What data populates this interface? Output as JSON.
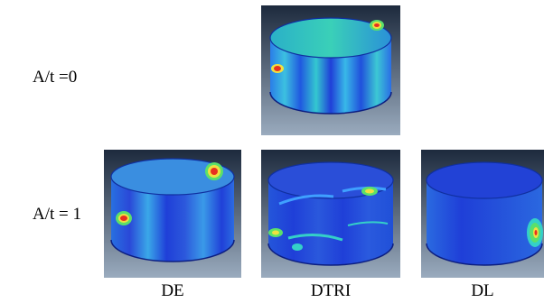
{
  "row_labels": {
    "top": "A/t =0",
    "bottom": "A/t = 1"
  },
  "column_labels": {
    "de": "DE",
    "dtri": "DTRI",
    "dl": "DL"
  },
  "colors": {
    "background_dark": "#1d2a3d",
    "background_light": "#8fa0b4",
    "shell_blue": "#1f3fd8",
    "shell_light_blue": "#3fa0ff",
    "shell_cyan": "#34d0c8",
    "hotspot_green": "#5be06a",
    "hotspot_yellow": "#f0e040",
    "hotspot_red": "#e83020"
  }
}
